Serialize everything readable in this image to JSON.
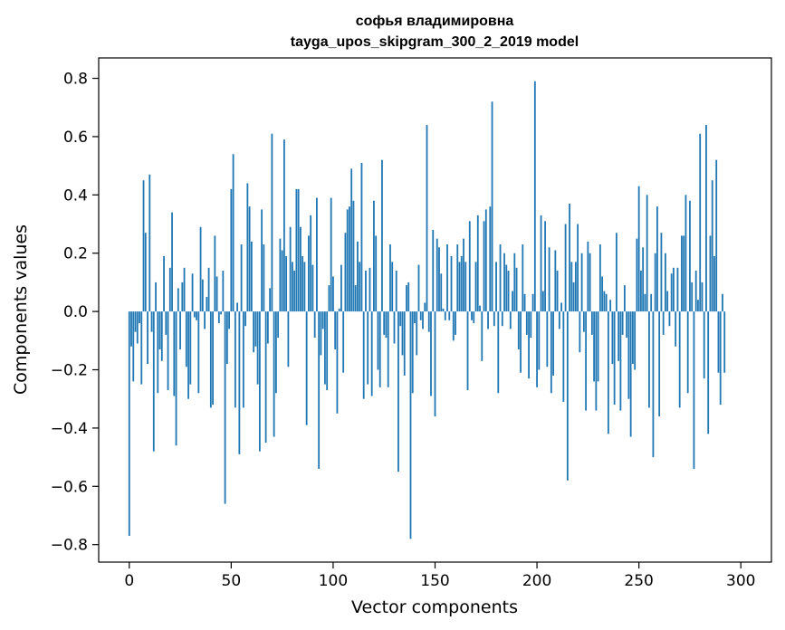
{
  "chart_data": {
    "type": "bar",
    "title": "софья владимировна",
    "subtitle": "tayga_upos_skipgram_300_2_2019 model",
    "xlabel": "Vector components",
    "ylabel": "Components values",
    "xlim": [
      -15,
      315
    ],
    "ylim": [
      -0.86,
      0.87
    ],
    "xticks": [
      0,
      50,
      100,
      150,
      200,
      250,
      300
    ],
    "yticks": [
      -0.8,
      -0.6,
      -0.4,
      -0.2,
      0.0,
      0.2,
      0.4,
      0.6,
      0.8
    ],
    "grid": false,
    "legend": "none",
    "bar_color": "#1f77b4",
    "values": [
      -0.77,
      -0.12,
      -0.24,
      -0.07,
      -0.11,
      -0.04,
      -0.25,
      0.45,
      0.27,
      -0.18,
      0.47,
      -0.07,
      -0.48,
      0.1,
      -0.28,
      -0.13,
      -0.17,
      0.19,
      -0.08,
      -0.27,
      0.15,
      0.34,
      -0.29,
      -0.46,
      0.08,
      -0.13,
      0.1,
      0.15,
      -0.19,
      -0.3,
      -0.25,
      0.13,
      -0.02,
      -0.03,
      -0.28,
      0.29,
      0.11,
      -0.06,
      0.05,
      0.15,
      -0.33,
      -0.32,
      0.26,
      0.12,
      -0.04,
      -0.01,
      0.14,
      -0.66,
      -0.18,
      -0.06,
      0.42,
      0.54,
      -0.33,
      0.03,
      -0.49,
      0.23,
      -0.33,
      -0.05,
      0.44,
      0.36,
      0.24,
      -0.14,
      -0.12,
      -0.25,
      -0.48,
      0.35,
      0.23,
      -0.45,
      -0.11,
      0.08,
      0.61,
      -0.43,
      -0.28,
      -0.09,
      0.25,
      0.21,
      0.59,
      0.19,
      -0.19,
      0.29,
      0.17,
      0.14,
      0.42,
      0.42,
      0.29,
      0.19,
      0.17,
      -0.39,
      0.26,
      0.33,
      0.16,
      -0.09,
      0.39,
      -0.54,
      -0.15,
      -0.06,
      -0.25,
      -0.27,
      0.09,
      0.39,
      0.12,
      -0.13,
      -0.35,
      0.01,
      0.16,
      -0.21,
      0.27,
      0.35,
      0.36,
      0.49,
      0.38,
      0.09,
      0.24,
      0.17,
      0.51,
      -0.3,
      0.14,
      -0.25,
      0.15,
      -0.29,
      0.38,
      0.26,
      -0.2,
      -0.26,
      0.52,
      -0.08,
      -0.09,
      -0.26,
      0.23,
      0.17,
      -0.11,
      0.14,
      -0.55,
      -0.05,
      -0.15,
      -0.22,
      0.09,
      0.1,
      -0.78,
      -0.28,
      -0.04,
      -0.15,
      0.16,
      -0.03,
      -0.06,
      0.03,
      0.64,
      -0.07,
      -0.29,
      0.28,
      -0.36,
      0.25,
      0.22,
      0.13,
      0.01,
      -0.03,
      0.23,
      -0.03,
      0.19,
      -0.1,
      -0.08,
      0.23,
      0.17,
      0.19,
      0.25,
      0.17,
      -0.27,
      0.31,
      -0.03,
      -0.04,
      0.17,
      0.33,
      0.02,
      -0.17,
      0.31,
      0.35,
      -0.06,
      0.36,
      0.72,
      -0.05,
      0.17,
      -0.28,
      0.23,
      -0.05,
      0.2,
      0.16,
      0.14,
      -0.06,
      0.07,
      0.2,
      0.15,
      -0.13,
      -0.21,
      0.23,
      0.06,
      -0.08,
      -0.23,
      -0.09,
      0.06,
      0.79,
      -0.26,
      -0.2,
      0.33,
      0.07,
      0.31,
      -0.19,
      0.22,
      -0.28,
      -0.22,
      0.21,
      0.14,
      -0.06,
      0.03,
      -0.31,
      0.3,
      -0.58,
      0.37,
      0.17,
      0.1,
      0.17,
      0.3,
      -0.14,
      0.2,
      -0.07,
      -0.34,
      0.24,
      0.2,
      -0.08,
      -0.24,
      -0.34,
      -0.24,
      0.23,
      0.12,
      0.07,
      0.06,
      -0.42,
      0.04,
      -0.18,
      -0.32,
      0.27,
      -0.17,
      -0.34,
      -0.08,
      0.09,
      -0.09,
      -0.3,
      -0.43,
      -0.18,
      -0.2,
      0.25,
      0.43,
      0.14,
      0.22,
      0.06,
      0.4,
      -0.33,
      0.06,
      -0.5,
      0.2,
      0.36,
      -0.36,
      0.27,
      -0.08,
      0.2,
      0.07,
      -0.05,
      0.13,
      0.15,
      -0.12,
      0.15,
      -0.33,
      0.26,
      0.26,
      0.4,
      -0.28,
      0.38,
      0.1,
      -0.54,
      0.14,
      0.04,
      0.61,
      0.1,
      -0.23,
      0.64,
      -0.42,
      0.26,
      0.45,
      0.19,
      0.52,
      -0.21,
      -0.32,
      0.06,
      -0.21
    ]
  }
}
